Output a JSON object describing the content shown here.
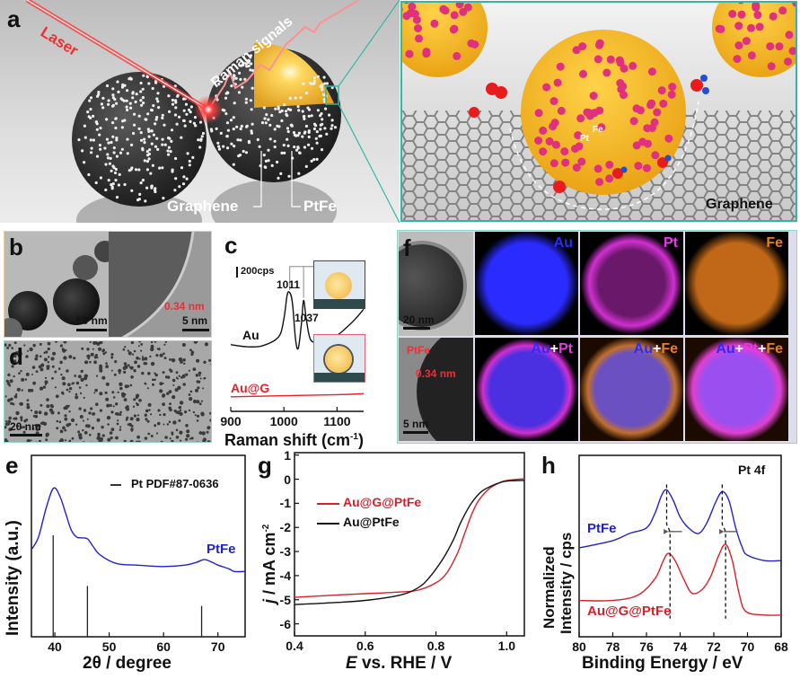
{
  "panel_labels": {
    "a": "a",
    "b": "b",
    "c": "c",
    "d": "d",
    "e": "e",
    "f": "f",
    "g": "g",
    "h": "h"
  },
  "panel_a": {
    "laser": "Laser",
    "raman": "Raman signals",
    "graphene": "Graphene",
    "ptfe": "PtFe",
    "zoom": {
      "pt": "Pt",
      "fe": "Fe",
      "graphene": "Graphene"
    },
    "colors": {
      "gold": "#f5b41a",
      "pink": "#e0307e",
      "laser": "#ff3030",
      "oxygen": "#e81c1c",
      "hydrogen": "#1f4fd6",
      "frame": "#35b5a5"
    }
  },
  "panel_b": {
    "scale_left": "50 nm",
    "scale_right": "5 nm",
    "lattice": "0.34 nm"
  },
  "panel_d": {
    "scale": "20 nm"
  },
  "panel_f": {
    "tem_top_scale": "20 nm",
    "tem_bottom_scale": "5 nm",
    "tem_bottom_label": "PtFe",
    "tem_bottom_lattice": "0.34 nm",
    "maps": [
      {
        "parts": [
          "Au"
        ],
        "colors": [
          "#2a2cff"
        ]
      },
      {
        "parts": [
          "Pt"
        ],
        "colors": [
          "#e838e8"
        ]
      },
      {
        "parts": [
          "Fe"
        ],
        "colors": [
          "#e8801c"
        ]
      },
      {
        "parts": [
          "Au",
          "+",
          "Pt"
        ],
        "colors": [
          "#2a2cff",
          "#ffffff",
          "#e838e8"
        ]
      },
      {
        "parts": [
          "Au",
          "+",
          "Fe"
        ],
        "colors": [
          "#2a2cff",
          "#ffffff",
          "#e8801c"
        ]
      },
      {
        "parts": [
          "Au",
          "+",
          "Pt",
          "+",
          "Fe"
        ],
        "colors": [
          "#2a2cff",
          "#ffffff",
          "#e838e8",
          "#ffffff",
          "#e8801c"
        ]
      }
    ]
  },
  "chart_data": [
    {
      "panel": "c",
      "type": "line",
      "xlabel": "Raman shift (cm",
      "xlabel_sup": "-1",
      "xlabel_end": ")",
      "xlim": [
        900,
        1150
      ],
      "ylim": [
        -280,
        3100
      ],
      "xticks": [
        900,
        1000,
        1100
      ],
      "scale_bar": "200cps",
      "peak_labels": [
        {
          "x": 1011,
          "text": "1011"
        },
        {
          "x": 1037,
          "text": "1037"
        }
      ],
      "series": [
        {
          "name": "Au",
          "color": "#111111",
          "points": [
            [
              900,
              1000
            ],
            [
              930,
              960
            ],
            [
              960,
              980
            ],
            [
              990,
              1150
            ],
            [
              1000,
              1500
            ],
            [
              1006,
              1950
            ],
            [
              1011,
              2000
            ],
            [
              1016,
              1800
            ],
            [
              1022,
              1100
            ],
            [
              1027,
              930
            ],
            [
              1033,
              1400
            ],
            [
              1037,
              1850
            ],
            [
              1042,
              1500
            ],
            [
              1050,
              1100
            ],
            [
              1065,
              1050
            ],
            [
              1080,
              1120
            ],
            [
              1100,
              1180
            ],
            [
              1120,
              1350
            ],
            [
              1135,
              1500
            ],
            [
              1150,
              1680
            ]
          ]
        },
        {
          "name": "Au@G",
          "color": "#e8202a",
          "points": [
            [
              900,
              0
            ],
            [
              1000,
              20
            ],
            [
              1100,
              40
            ],
            [
              1150,
              60
            ]
          ]
        }
      ]
    },
    {
      "panel": "e",
      "type": "line",
      "xlabel": "2θ / degree",
      "ylabel": "Intensity (a.u.)",
      "xlim": [
        35.7,
        75
      ],
      "ylim": [
        0,
        100
      ],
      "xticks": [
        40,
        50,
        60,
        70
      ],
      "legend": "Pt PDF#87-0636",
      "series": [
        {
          "name": "PtFe",
          "color": "#2222cc",
          "points": [
            [
              35.7,
              48
            ],
            [
              37,
              55
            ],
            [
              38.5,
              72
            ],
            [
              39.8,
              82
            ],
            [
              41,
              77
            ],
            [
              42,
              68
            ],
            [
              43,
              59
            ],
            [
              44,
              55
            ],
            [
              45,
              54.5
            ],
            [
              46,
              54
            ],
            [
              47,
              50
            ],
            [
              48,
              46
            ],
            [
              50,
              42
            ],
            [
              52,
              40
            ],
            [
              55,
              39.5
            ],
            [
              60,
              38.7
            ],
            [
              64,
              39.5
            ],
            [
              66,
              41
            ],
            [
              67.5,
              42.5
            ],
            [
              69,
              41
            ],
            [
              70,
              39.5
            ],
            [
              72,
              37.5
            ],
            [
              73,
              36
            ],
            [
              75,
              36
            ]
          ]
        }
      ],
      "reference_bars": [
        {
          "x": 39.7,
          "y": 56
        },
        {
          "x": 46,
          "y": 28
        },
        {
          "x": 67,
          "y": 17
        }
      ]
    },
    {
      "panel": "g",
      "type": "line",
      "xlabel_var": "E",
      "xlabel": " vs. RHE / V",
      "ylabel_var": "j",
      "ylabel": " / mA cm",
      "ylabel_sup": "-2",
      "xlim": [
        0.4,
        1.05
      ],
      "ylim": [
        -6.5,
        1.1
      ],
      "xticks": [
        0.4,
        0.6,
        0.8,
        1.0
      ],
      "yticks": [
        1,
        0,
        -1,
        -2,
        -3,
        -4,
        -5,
        -6
      ],
      "series": [
        {
          "name": "Au@G@PtFe",
          "color": "#d8202a",
          "points": [
            [
              0.4,
              -4.9
            ],
            [
              0.5,
              -4.82
            ],
            [
              0.6,
              -4.75
            ],
            [
              0.7,
              -4.68
            ],
            [
              0.75,
              -4.6
            ],
            [
              0.8,
              -4.3
            ],
            [
              0.83,
              -3.9
            ],
            [
              0.86,
              -3.1
            ],
            [
              0.88,
              -2.3
            ],
            [
              0.9,
              -1.5
            ],
            [
              0.92,
              -0.9
            ],
            [
              0.95,
              -0.4
            ],
            [
              0.98,
              -0.15
            ],
            [
              1.0,
              -0.05
            ],
            [
              1.05,
              0.02
            ]
          ]
        },
        {
          "name": "Au@PtFe",
          "color": "#111111",
          "points": [
            [
              0.4,
              -5.2
            ],
            [
              0.5,
              -5.13
            ],
            [
              0.6,
              -5.03
            ],
            [
              0.7,
              -4.8
            ],
            [
              0.75,
              -4.5
            ],
            [
              0.78,
              -4.1
            ],
            [
              0.82,
              -3.3
            ],
            [
              0.85,
              -2.5
            ],
            [
              0.87,
              -1.8
            ],
            [
              0.9,
              -1.0
            ],
            [
              0.93,
              -0.5
            ],
            [
              0.97,
              -0.2
            ],
            [
              1.0,
              -0.08
            ],
            [
              1.05,
              -0.05
            ]
          ]
        }
      ]
    },
    {
      "panel": "h",
      "type": "line",
      "title": "Pt 4f",
      "xlabel": "Binding Energy / eV",
      "ylabel_line1": "Normalized",
      "ylabel_line2": "Intensity / cps",
      "xlim": [
        80,
        68
      ],
      "ylim": [
        0,
        1
      ],
      "xticks": [
        80,
        78,
        76,
        74,
        72,
        70,
        68
      ],
      "series": [
        {
          "name": "PtFe",
          "color": "#2222cc",
          "points": [
            [
              80,
              0.49
            ],
            [
              78,
              0.53
            ],
            [
              77,
              0.57
            ],
            [
              76,
              0.6
            ],
            [
              75.5,
              0.68
            ],
            [
              75.1,
              0.78
            ],
            [
              74.8,
              0.81
            ],
            [
              74.4,
              0.75
            ],
            [
              74,
              0.66
            ],
            [
              73.5,
              0.6
            ],
            [
              72.9,
              0.57
            ],
            [
              72.4,
              0.63
            ],
            [
              71.9,
              0.74
            ],
            [
              71.5,
              0.8
            ],
            [
              71.1,
              0.75
            ],
            [
              70.7,
              0.6
            ],
            [
              70.3,
              0.49
            ],
            [
              70,
              0.45
            ],
            [
              69,
              0.42
            ],
            [
              68,
              0.42
            ]
          ]
        },
        {
          "name": "Au@G@PtFe",
          "color": "#d8202a",
          "points": [
            [
              80,
              0.2
            ],
            [
              78,
              0.2
            ],
            [
              76.5,
              0.23
            ],
            [
              75.5,
              0.32
            ],
            [
              75,
              0.42
            ],
            [
              74.7,
              0.46
            ],
            [
              74.3,
              0.42
            ],
            [
              73.8,
              0.32
            ],
            [
              73.3,
              0.24
            ],
            [
              72.7,
              0.26
            ],
            [
              72.2,
              0.33
            ],
            [
              71.7,
              0.45
            ],
            [
              71.3,
              0.51
            ],
            [
              70.9,
              0.42
            ],
            [
              70.5,
              0.24
            ],
            [
              70.1,
              0.14
            ],
            [
              69,
              0.12
            ],
            [
              68,
              0.12
            ]
          ]
        }
      ],
      "peak_positions": [
        {
          "ptfe": 74.8,
          "au_g_ptfe": 74.6
        },
        {
          "ptfe": 71.5,
          "au_g_ptfe": 71.3
        }
      ]
    }
  ]
}
